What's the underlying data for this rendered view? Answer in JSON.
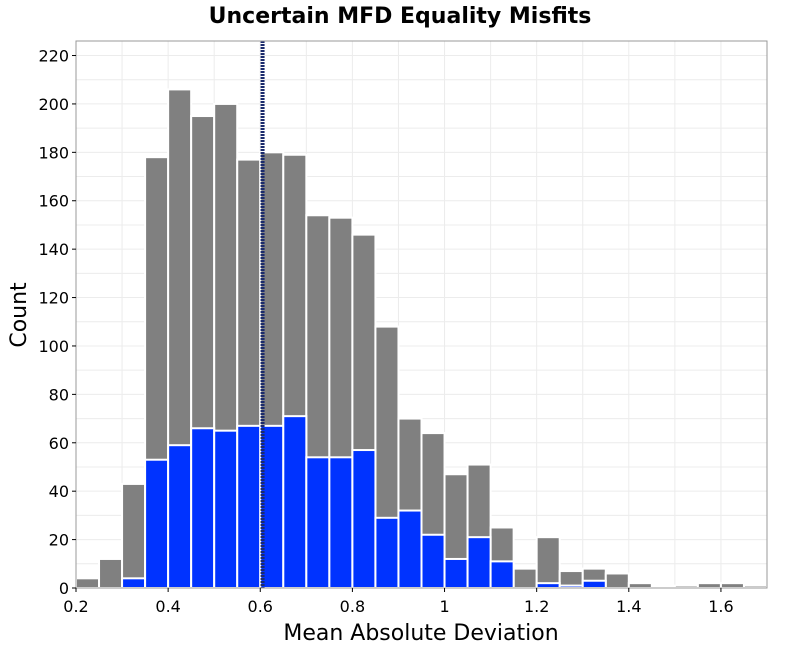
{
  "chart_data": {
    "type": "bar",
    "title": "Uncertain MFD Equality Misfits",
    "xlabel": "Mean Absolute Deviation",
    "ylabel": "Count",
    "xlim": [
      0.2,
      1.7
    ],
    "ylim": [
      0,
      226
    ],
    "bin_width": 0.05,
    "x_ticks": [
      0.2,
      0.4,
      0.6,
      0.8,
      1.0,
      1.2,
      1.4,
      1.6
    ],
    "x_tick_labels": [
      "0.2",
      "0.4",
      "0.6",
      "0.8",
      "1",
      "1.2",
      "1.4",
      "1.6"
    ],
    "y_ticks": [
      0,
      20,
      40,
      60,
      80,
      100,
      120,
      140,
      160,
      180,
      200,
      220
    ],
    "y_tick_labels": [
      "0",
      "20",
      "40",
      "60",
      "80",
      "100",
      "120",
      "140",
      "160",
      "180",
      "200",
      "220"
    ],
    "grid": true,
    "bin_centers": [
      0.225,
      0.275,
      0.325,
      0.375,
      0.425,
      0.475,
      0.525,
      0.575,
      0.625,
      0.675,
      0.725,
      0.775,
      0.825,
      0.875,
      0.925,
      0.975,
      1.025,
      1.075,
      1.125,
      1.175,
      1.225,
      1.275,
      1.325,
      1.375,
      1.425,
      1.475,
      1.525,
      1.575,
      1.625,
      1.675
    ],
    "series": [
      {
        "color": "#808080",
        "values": [
          4,
          12,
          43,
          178,
          206,
          195,
          200,
          177,
          180,
          179,
          154,
          153,
          146,
          108,
          70,
          64,
          47,
          51,
          25,
          8,
          21,
          7,
          8,
          6,
          2,
          0,
          1,
          2,
          2,
          1
        ]
      },
      {
        "color": "#0033ff",
        "values": [
          0,
          0,
          4,
          53,
          59,
          66,
          65,
          67,
          67,
          71,
          54,
          54,
          57,
          29,
          32,
          22,
          12,
          21,
          11,
          0,
          2,
          1,
          3,
          0,
          0,
          0,
          0,
          0,
          0,
          0
        ]
      }
    ],
    "reference_line": {
      "x": 0.605,
      "color": "#1a2a6c",
      "style": "dotted"
    }
  }
}
